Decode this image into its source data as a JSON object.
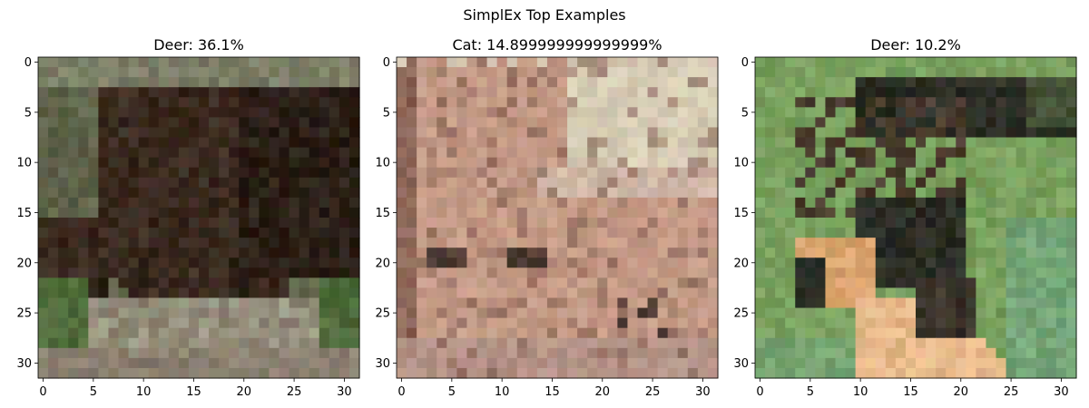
{
  "figure": {
    "title": "SimplEx Top Examples"
  },
  "chart_data": [
    {
      "type": "image",
      "title": "Deer: 36.1%",
      "label": "Deer",
      "percent": "36.1%",
      "xticks": [
        0,
        5,
        10,
        15,
        20,
        25,
        30
      ],
      "yticks": [
        0,
        5,
        10,
        15,
        20,
        25,
        30
      ],
      "xlim": [
        -0.5,
        31.5
      ],
      "ylim": [
        31.5,
        -0.5
      ],
      "grid": false,
      "colors": {
        "background": "#5e6249",
        "subject": "#3a2a1f",
        "subject_dark": "#2b1f16",
        "grass_light": "#9a9a84",
        "grass_green": "#4f6b3a",
        "ground": "#8b8070"
      }
    },
    {
      "type": "image",
      "title": "Cat: 14.899999999999999%",
      "label": "Cat",
      "percent": "14.899999999999999%",
      "xticks": [
        0,
        5,
        10,
        15,
        20,
        25,
        30
      ],
      "yticks": [
        0,
        5,
        10,
        15,
        20,
        25,
        30
      ],
      "xlim": [
        -0.5,
        31.5
      ],
      "ylim": [
        31.5,
        -0.5
      ],
      "grid": false,
      "colors": {
        "background": "#d8c7b4",
        "wall": "#d6ccb4",
        "fur": "#c49a86",
        "fur_dark": "#7a5448",
        "stripe": "#4e3a33",
        "blanket": "#c9a89c"
      }
    },
    {
      "type": "image",
      "title": "Deer: 10.2%",
      "label": "Deer",
      "percent": "10.2%",
      "xticks": [
        0,
        5,
        10,
        15,
        20,
        25,
        30
      ],
      "yticks": [
        0,
        5,
        10,
        15,
        20,
        25,
        30
      ],
      "xlim": [
        -0.5,
        31.5
      ],
      "ylim": [
        31.5,
        -0.5
      ],
      "grid": false,
      "colors": {
        "background": "#79a05e",
        "shadow": "#2c2e25",
        "antler": "#4a3b2e",
        "face": "#d9a46e",
        "neck": "#e6b98a",
        "water": "#72a88a"
      }
    }
  ]
}
